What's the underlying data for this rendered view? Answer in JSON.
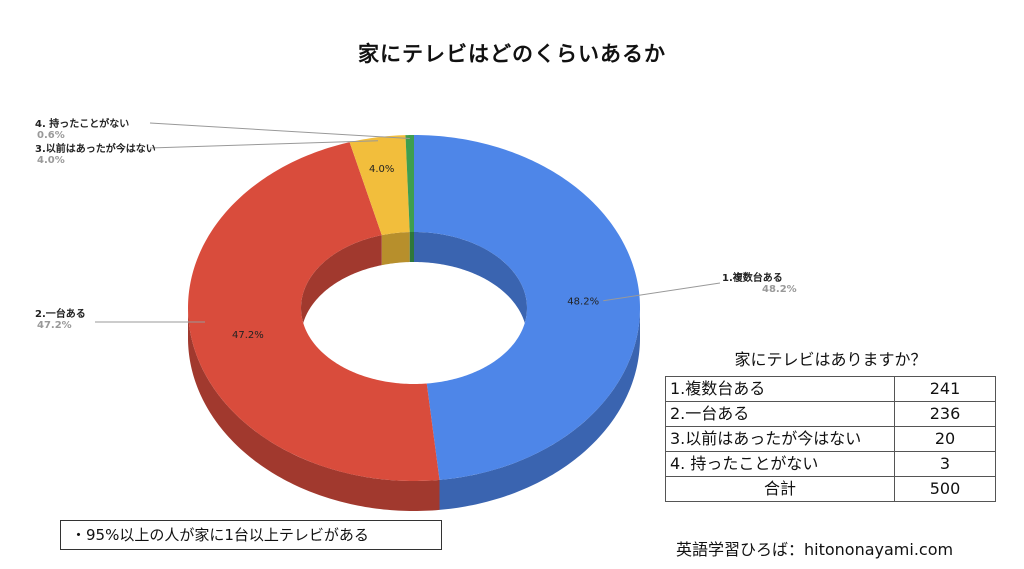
{
  "title": "家にテレビはどのくらいあるか",
  "chart_data": {
    "type": "pie",
    "title": "家にテレビはどのくらいあるか",
    "slices": [
      {
        "label": "1.複数台ある",
        "value": 48.2,
        "pct_label": "48.2%",
        "color": "#4E86E8",
        "side": "#3A64B0"
      },
      {
        "label": "2.一台ある",
        "value": 47.2,
        "pct_label": "47.2%",
        "color": "#D94C3C",
        "side": "#A1392E"
      },
      {
        "label": "3.以前はあったが今はない",
        "value": 4.0,
        "pct_label": "4.0%",
        "color": "#F2BE3C",
        "side": "#B78F2C"
      },
      {
        "label": "4.  持ったことがない",
        "value": 0.6,
        "pct_label": "0.6%",
        "color": "#3E9E4F",
        "side": "#2E773B"
      }
    ]
  },
  "table": {
    "caption": "家にテレビはありますか？",
    "rows": [
      {
        "label": "1.複数台ある",
        "value": "241"
      },
      {
        "label": "2.一台ある",
        "value": "236"
      },
      {
        "label": "3.以前はあったが今はない",
        "value": "20"
      },
      {
        "label": "4.  持ったことがない",
        "value": "3"
      }
    ],
    "total_label": "合計",
    "total_value": "500"
  },
  "note": "・95%以上の人が家に1台以上テレビがある",
  "credit": "英語学習ひろば：hitononayami.com"
}
